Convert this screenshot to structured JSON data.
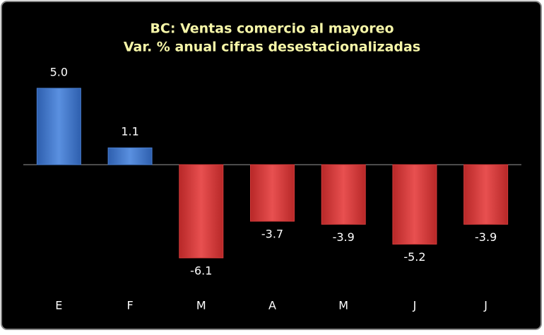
{
  "chart_data": {
    "type": "bar",
    "title": "BC: Ventas comercio al mayoreo",
    "subtitle": "Var. % anual cifras desestacionalizadas",
    "categories": [
      "E",
      "F",
      "M",
      "A",
      "M",
      "J",
      "J"
    ],
    "values": [
      5.0,
      1.1,
      -6.1,
      -3.7,
      -3.9,
      -5.2,
      -3.9
    ],
    "value_labels": [
      "5.0",
      "1.1",
      "-6.1",
      "-3.7",
      "-3.9",
      "-5.2",
      "-3.9"
    ],
    "colors": {
      "positive": "#4a7fd0",
      "negative": "#d63c3c"
    }
  }
}
